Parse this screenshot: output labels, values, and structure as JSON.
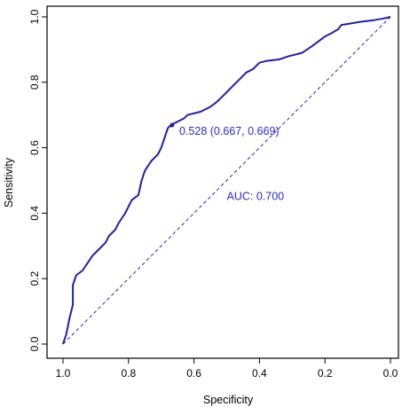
{
  "chart_data": {
    "type": "line",
    "xlabel": "Specificity",
    "ylabel": "Sensitivity",
    "xlim": [
      1.0,
      0.0
    ],
    "ylim": [
      0.0,
      1.0
    ],
    "x_reversed": true,
    "grid": false,
    "legend": "none",
    "x_ticks": [
      {
        "value": 1.0,
        "label": "1.0"
      },
      {
        "value": 0.8,
        "label": "0.8"
      },
      {
        "value": 0.6,
        "label": "0.6"
      },
      {
        "value": 0.4,
        "label": "0.4"
      },
      {
        "value": 0.2,
        "label": "0.2"
      },
      {
        "value": 0.0,
        "label": "0.0"
      }
    ],
    "y_ticks": [
      {
        "value": 0.0,
        "label": "0.0"
      },
      {
        "value": 0.2,
        "label": "0.2"
      },
      {
        "value": 0.4,
        "label": "0.4"
      },
      {
        "value": 0.6,
        "label": "0.6"
      },
      {
        "value": 0.8,
        "label": "0.8"
      },
      {
        "value": 1.0,
        "label": "1.0"
      }
    ],
    "series": [
      {
        "color": "#1f1fb0",
        "points": [
          [
            1.0,
            0.0
          ],
          [
            0.99,
            0.03
          ],
          [
            0.98,
            0.08
          ],
          [
            0.97,
            0.12
          ],
          [
            0.97,
            0.18
          ],
          [
            0.96,
            0.21
          ],
          [
            0.94,
            0.225
          ],
          [
            0.93,
            0.24
          ],
          [
            0.91,
            0.27
          ],
          [
            0.89,
            0.29
          ],
          [
            0.87,
            0.31
          ],
          [
            0.86,
            0.33
          ],
          [
            0.84,
            0.35
          ],
          [
            0.83,
            0.37
          ],
          [
            0.81,
            0.4
          ],
          [
            0.79,
            0.44
          ],
          [
            0.77,
            0.455
          ],
          [
            0.76,
            0.5
          ],
          [
            0.75,
            0.53
          ],
          [
            0.73,
            0.56
          ],
          [
            0.71,
            0.58
          ],
          [
            0.7,
            0.6
          ],
          [
            0.69,
            0.63
          ],
          [
            0.68,
            0.66
          ],
          [
            0.67,
            0.67
          ],
          [
            0.65,
            0.68
          ],
          [
            0.63,
            0.69
          ],
          [
            0.62,
            0.7
          ],
          [
            0.58,
            0.71
          ],
          [
            0.55,
            0.725
          ],
          [
            0.53,
            0.74
          ],
          [
            0.52,
            0.75
          ],
          [
            0.49,
            0.78
          ],
          [
            0.46,
            0.81
          ],
          [
            0.44,
            0.83
          ],
          [
            0.42,
            0.84
          ],
          [
            0.4,
            0.86
          ],
          [
            0.38,
            0.865
          ],
          [
            0.34,
            0.87
          ],
          [
            0.31,
            0.88
          ],
          [
            0.27,
            0.89
          ],
          [
            0.24,
            0.91
          ],
          [
            0.22,
            0.925
          ],
          [
            0.2,
            0.94
          ],
          [
            0.18,
            0.95
          ],
          [
            0.16,
            0.962
          ],
          [
            0.15,
            0.975
          ],
          [
            0.12,
            0.98
          ],
          [
            0.09,
            0.985
          ],
          [
            0.05,
            0.99
          ],
          [
            0.02,
            0.995
          ],
          [
            0.0,
            1.0
          ]
        ]
      }
    ],
    "reference_line": {
      "from": [
        1.0,
        0.0
      ],
      "to": [
        0.0,
        1.0
      ],
      "style": "dashed",
      "color": "#2a2ad6"
    },
    "marker": {
      "x": 0.667,
      "y": 0.669,
      "color": "#1f1fb0"
    },
    "annotations": [
      {
        "text": "0.528 (0.667, 0.669)",
        "x": 0.645,
        "y": 0.64,
        "color": "#2a2ad6"
      },
      {
        "text": "AUC: 0.700",
        "x": 0.5,
        "y": 0.44,
        "color": "#2a2ad6"
      }
    ]
  }
}
